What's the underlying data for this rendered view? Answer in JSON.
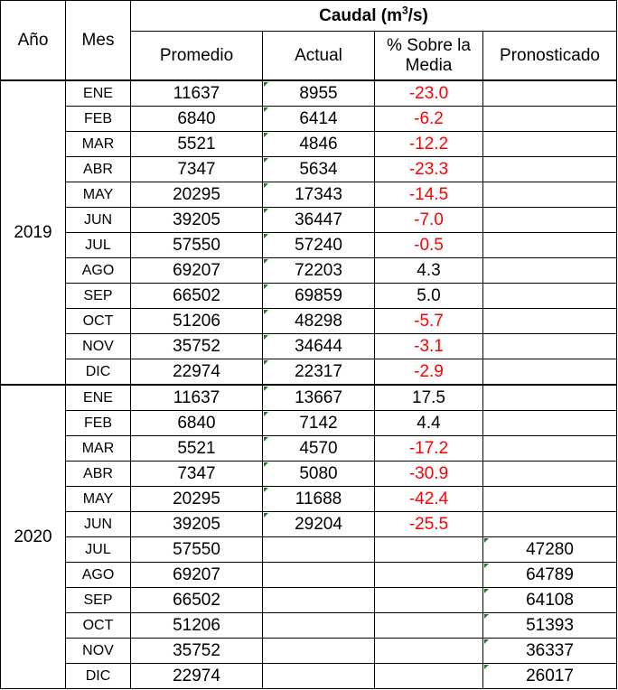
{
  "headers": {
    "anio": "Año",
    "mes": "Mes",
    "caudal_prefix": "Caudal (m",
    "caudal_sup": "3",
    "caudal_suffix": "/s)",
    "promedio": "Promedio",
    "actual": "Actual",
    "sobre_media": "% Sobre la Media",
    "pronosticado": "Pronosticado"
  },
  "groups": [
    {
      "year": "2019",
      "rows": [
        {
          "mes": "ENE",
          "promedio": "11637",
          "actual": "8955",
          "pct": "-23.0",
          "pron": ""
        },
        {
          "mes": "FEB",
          "promedio": "6840",
          "actual": "6414",
          "pct": "-6.2",
          "pron": ""
        },
        {
          "mes": "MAR",
          "promedio": "5521",
          "actual": "4846",
          "pct": "-12.2",
          "pron": ""
        },
        {
          "mes": "ABR",
          "promedio": "7347",
          "actual": "5634",
          "pct": "-23.3",
          "pron": ""
        },
        {
          "mes": "MAY",
          "promedio": "20295",
          "actual": "17343",
          "pct": "-14.5",
          "pron": ""
        },
        {
          "mes": "JUN",
          "promedio": "39205",
          "actual": "36447",
          "pct": "-7.0",
          "pron": ""
        },
        {
          "mes": "JUL",
          "promedio": "57550",
          "actual": "57240",
          "pct": "-0.5",
          "pron": ""
        },
        {
          "mes": "AGO",
          "promedio": "69207",
          "actual": "72203",
          "pct": "4.3",
          "pron": ""
        },
        {
          "mes": "SEP",
          "promedio": "66502",
          "actual": "69859",
          "pct": "5.0",
          "pron": ""
        },
        {
          "mes": "OCT",
          "promedio": "51206",
          "actual": "48298",
          "pct": "-5.7",
          "pron": ""
        },
        {
          "mes": "NOV",
          "promedio": "35752",
          "actual": "34644",
          "pct": "-3.1",
          "pron": ""
        },
        {
          "mes": "DIC",
          "promedio": "22974",
          "actual": "22317",
          "pct": "-2.9",
          "pron": ""
        }
      ]
    },
    {
      "year": "2020",
      "rows": [
        {
          "mes": "ENE",
          "promedio": "11637",
          "actual": "13667",
          "pct": "17.5",
          "pron": ""
        },
        {
          "mes": "FEB",
          "promedio": "6840",
          "actual": "7142",
          "pct": "4.4",
          "pron": ""
        },
        {
          "mes": "MAR",
          "promedio": "5521",
          "actual": "4570",
          "pct": "-17.2",
          "pron": ""
        },
        {
          "mes": "ABR",
          "promedio": "7347",
          "actual": "5080",
          "pct": "-30.9",
          "pron": ""
        },
        {
          "mes": "MAY",
          "promedio": "20295",
          "actual": "11688",
          "pct": "-42.4",
          "pron": ""
        },
        {
          "mes": "JUN",
          "promedio": "39205",
          "actual": "29204",
          "pct": "-25.5",
          "pron": ""
        },
        {
          "mes": "JUL",
          "promedio": "57550",
          "actual": "",
          "pct": "",
          "pron": "47280"
        },
        {
          "mes": "AGO",
          "promedio": "69207",
          "actual": "",
          "pct": "",
          "pron": "64789"
        },
        {
          "mes": "SEP",
          "promedio": "66502",
          "actual": "",
          "pct": "",
          "pron": "64108"
        },
        {
          "mes": "OCT",
          "promedio": "51206",
          "actual": "",
          "pct": "",
          "pron": "51393"
        },
        {
          "mes": "NOV",
          "promedio": "35752",
          "actual": "",
          "pct": "",
          "pron": "36337"
        },
        {
          "mes": "DIC",
          "promedio": "22974",
          "actual": "",
          "pct": "",
          "pron": "26017"
        }
      ]
    }
  ],
  "colors": {
    "negative": "#ff0000",
    "marker": "#1f7a1f",
    "border": "#000000"
  }
}
